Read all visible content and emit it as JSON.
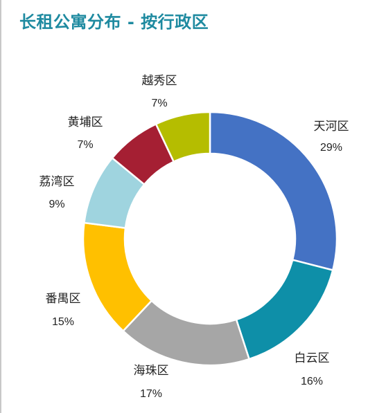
{
  "chart_data": {
    "type": "pie",
    "variant": "donut",
    "title": "长租公寓分布 - 按行政区",
    "categories": [
      "天河区",
      "白云区",
      "海珠区",
      "番禺区",
      "荔湾区",
      "黄埔区",
      "越秀区"
    ],
    "values": [
      29,
      16,
      17,
      15,
      9,
      7,
      7
    ],
    "value_labels": [
      "29%",
      "16%",
      "17%",
      "15%",
      "9%",
      "7%",
      "7%"
    ],
    "colors": [
      "#4472c4",
      "#0e8fa8",
      "#a6a6a6",
      "#ffc000",
      "#9fd4df",
      "#a51f33",
      "#b5bd00"
    ],
    "start_angle_deg": 0,
    "direction": "clockwise"
  }
}
